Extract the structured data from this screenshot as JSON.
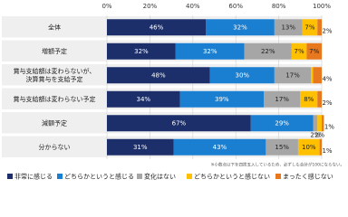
{
  "chart_data": {
    "type": "bar",
    "orientation": "horizontal",
    "stacked": true,
    "categories": [
      [
        "全体"
      ],
      [
        "増額予定"
      ],
      [
        "賞与支給額は変わらないが、",
        "決算賞与を支給予定"
      ],
      [
        "賞与支給額は変わらない予定"
      ],
      [
        "減額予定"
      ],
      [
        "分からない"
      ]
    ],
    "series": [
      {
        "name": "非常に感じる",
        "color": "#1c2f6b",
        "values": [
          46,
          32,
          48,
          34,
          67,
          31
        ],
        "value_labels": [
          "46%",
          "32%",
          "48%",
          "34%",
          "67%",
          "31%"
        ]
      },
      {
        "name": "どちらかというと感じる",
        "color": "#1a7fd0",
        "values": [
          32,
          32,
          30,
          39,
          29,
          43
        ],
        "value_labels": [
          "32%",
          "32%",
          "30%",
          "39%",
          "29%",
          "43%"
        ]
      },
      {
        "name": "変化はない",
        "color": "#a6a6a6",
        "values": [
          13,
          22,
          17,
          17,
          2,
          15
        ],
        "value_labels": [
          "13%",
          "22%",
          "17%",
          "17%",
          "2%",
          "15%"
        ]
      },
      {
        "name": "どちらかというと感じない",
        "color": "#ffc000",
        "values": [
          7,
          7,
          1,
          8,
          2,
          10
        ],
        "value_labels": [
          "7%",
          "7%",
          null,
          "8%",
          "2%",
          "10%"
        ]
      },
      {
        "name": "まったく感じない",
        "color": "#e8781e",
        "values": [
          2,
          7,
          4,
          2,
          1,
          1
        ],
        "value_labels": [
          "2%",
          "7%",
          "4%",
          "2%",
          "1%",
          "1%"
        ]
      }
    ],
    "xlim": [
      0,
      100
    ],
    "xticks": [
      {
        "value": 0,
        "label": "0%"
      },
      {
        "value": 20,
        "label": "20%"
      },
      {
        "value": 40,
        "label": "40%"
      },
      {
        "value": 60,
        "label": "60%"
      },
      {
        "value": 80,
        "label": "80%"
      },
      {
        "value": 100,
        "label": "100%"
      }
    ],
    "grid": true,
    "footnote": "※小数点以下を四捨五入しているため、必ずしも合計が100にならない。",
    "legend": "bottom"
  }
}
